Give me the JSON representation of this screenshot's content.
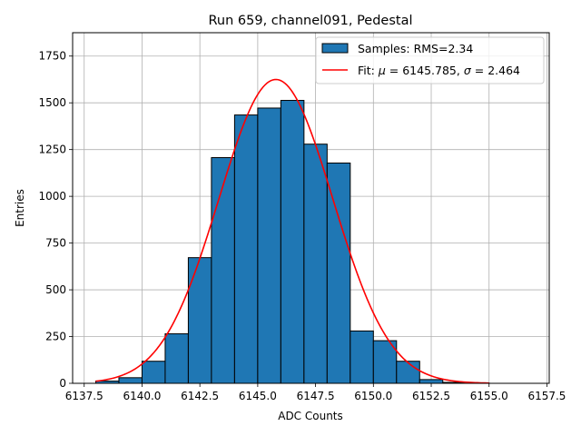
{
  "chart_data": {
    "type": "bar",
    "title": "Run 659, channel091, Pedestal",
    "xlabel": "ADC Counts",
    "ylabel": "Entries",
    "xlim": [
      6137.0,
      6157.6
    ],
    "ylim": [
      0,
      1875
    ],
    "grid": true,
    "legend_position": "top-right",
    "x_ticks": [
      6137.5,
      6140.0,
      6142.5,
      6145.0,
      6147.5,
      6150.0,
      6152.5,
      6155.0,
      6157.5
    ],
    "x_tick_labels": [
      "6137.5",
      "6140.0",
      "6142.5",
      "6145.0",
      "6147.5",
      "6150.0",
      "6152.5",
      "6155.0",
      "6157.5"
    ],
    "y_ticks": [
      0,
      250,
      500,
      750,
      1000,
      1250,
      1500,
      1750
    ],
    "y_tick_labels": [
      "0",
      "250",
      "500",
      "750",
      "1000",
      "1250",
      "1500",
      "1750"
    ],
    "histogram": {
      "name": "Samples: RMS=2.34",
      "color": "#1f77b4",
      "edge_color": "#000000",
      "bin_edges": [
        6138,
        6139,
        6140,
        6141,
        6142,
        6143,
        6144,
        6145,
        6146,
        6147,
        6148,
        6149,
        6150,
        6151,
        6152,
        6153,
        6154,
        6155,
        6156,
        6157
      ],
      "counts": [
        12,
        30,
        118,
        265,
        672,
        1207,
        1435,
        1472,
        1513,
        1279,
        1178,
        280,
        228,
        118,
        20,
        5,
        2,
        0,
        0
      ]
    },
    "fit": {
      "name_prefix": "Fit: ",
      "mu_label": "μ",
      "mu_value": "6145.785",
      "sigma_label": "σ",
      "sigma_value": "2.464",
      "color": "#ff0000",
      "mu": 6145.785,
      "sigma": 2.464,
      "amplitude": 1625,
      "x_range": [
        6138,
        6155
      ]
    }
  }
}
